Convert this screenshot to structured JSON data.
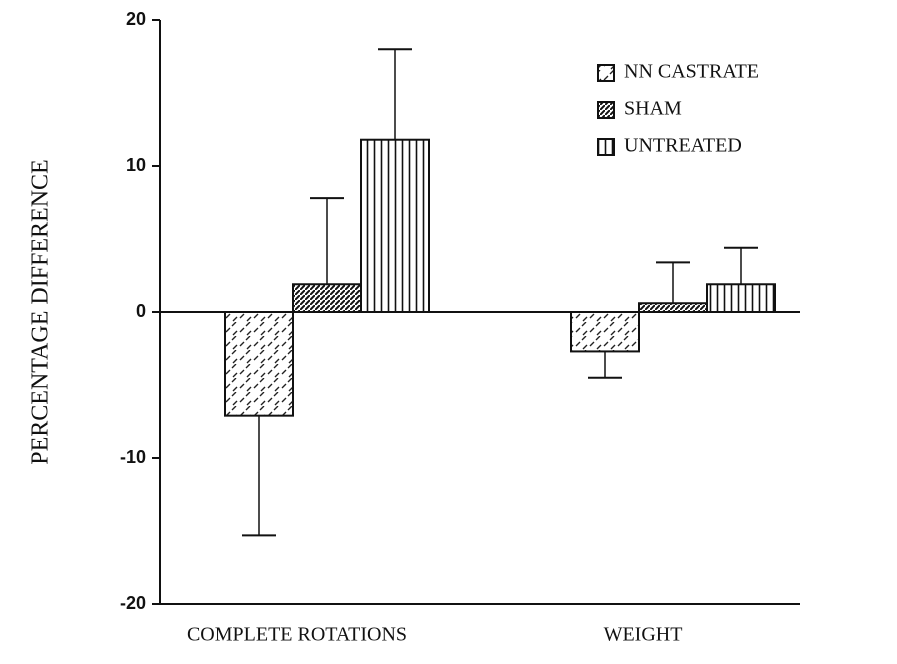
{
  "chart_data": {
    "type": "bar",
    "y_label": "PERCENTAGE DIFFERENCE",
    "categories": [
      "COMPLETE ROTATIONS",
      "WEIGHT"
    ],
    "series": [
      {
        "name": "NN CASTRATE",
        "values": [
          -7.1,
          -2.7
        ],
        "errors": [
          8.2,
          1.8
        ]
      },
      {
        "name": "SHAM",
        "values": [
          1.9,
          0.6
        ],
        "errors": [
          5.9,
          2.8
        ]
      },
      {
        "name": "UNTREATED",
        "values": [
          11.8,
          1.9
        ],
        "errors": [
          6.2,
          2.5
        ]
      }
    ],
    "ylim": [
      -20,
      20
    ],
    "yticks": [
      -20,
      -10,
      0,
      10,
      20
    ]
  }
}
